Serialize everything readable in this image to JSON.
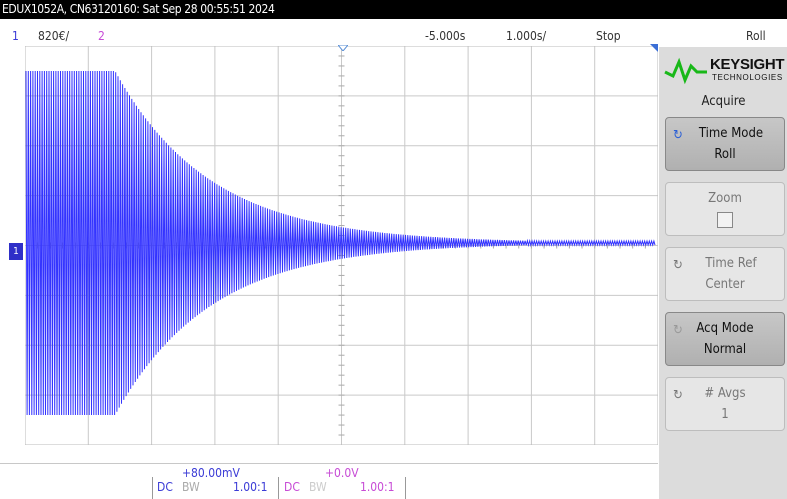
{
  "title_bar": {
    "text": "EDUX1052A, CN63120160: Sat Sep 28 00:55:51 2024"
  },
  "status_bar": {
    "ch1_number": "1",
    "ch1_scale": "820€/",
    "ch2_number": "2",
    "time_offset": "-5.000s",
    "time_scale": "1.000s/",
    "run_state": "Stop",
    "mode": "Roll"
  },
  "logo": {
    "name": "KEYSIGHT",
    "sub": "TECHNOLOGIES"
  },
  "menu": {
    "title": "Acquire",
    "softkeys": [
      {
        "label": "Time Mode",
        "value": "Roll",
        "active": true
      },
      {
        "label": "Zoom",
        "value": "",
        "active": false
      },
      {
        "label": "Time Ref",
        "value": "Center",
        "active": false
      },
      {
        "label": "Acq Mode",
        "value": "Normal",
        "active": true
      },
      {
        "label": "# Avgs",
        "value": "1",
        "active": false
      }
    ]
  },
  "footer": {
    "ch1": {
      "offset": "+80.00mV",
      "coupling": "DC",
      "bw": "BW",
      "probe": "1.00:1"
    },
    "ch2": {
      "offset": "+0.0V",
      "coupling": "DC",
      "bw": "BW",
      "probe": "1.00:1"
    }
  },
  "colors": {
    "ch1": "#3b3bd6",
    "ch2": "#c74bd6",
    "trace": "#3333ff",
    "grid": "#c9c9c9"
  }
}
